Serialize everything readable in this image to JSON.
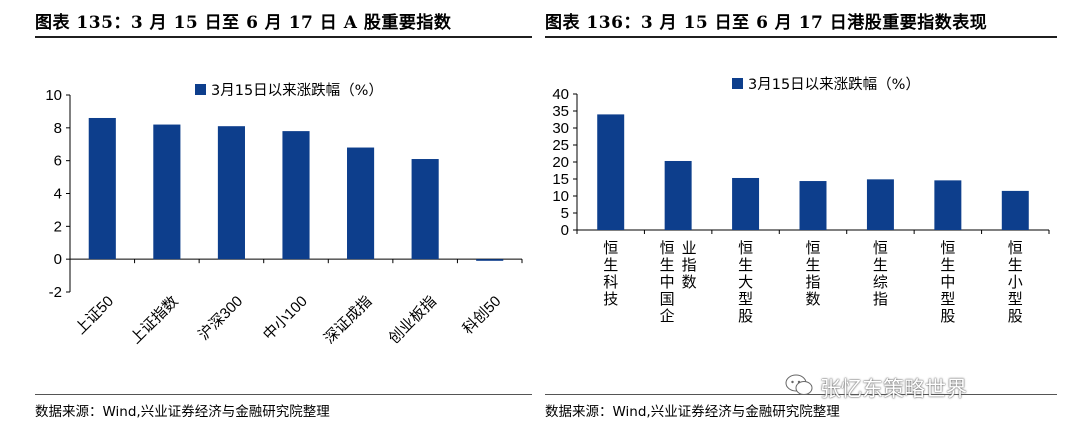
{
  "left_figure": {
    "title": "图表 135：3 月 15 日至 6 月 17 日 A 股重要指数",
    "source": "数据来源：Wind,兴业证券经济与金融研究院整理",
    "chart_data": {
      "type": "bar",
      "categories": [
        "上证50",
        "上证指数",
        "沪深300",
        "中小100",
        "深证成指",
        "创业板指",
        "科创50"
      ],
      "series": [
        {
          "name": "3月15日以来涨跌幅（%）",
          "values": [
            8.6,
            8.2,
            8.1,
            7.8,
            6.8,
            6.1,
            -0.1
          ]
        }
      ],
      "yticks": [
        "10",
        "8",
        "6",
        "4",
        "2",
        "0",
        "-2"
      ],
      "ylim": [
        -2,
        10
      ],
      "legend": "top",
      "grid": false,
      "color": "#0d3e8c"
    }
  },
  "right_figure": {
    "title": "图表 136：3 月 15 日至 6 月 17 日港股重要指数表现",
    "source": "数据来源：Wind,兴业证券经济与金融研究院整理",
    "chart_data": {
      "type": "bar",
      "categories": [
        "恒生科技",
        "恒生中国企业指数",
        "恒生大型股",
        "恒生指数",
        "恒生综指",
        "恒生中型股",
        "恒生小型股"
      ],
      "series": [
        {
          "name": "3月15日以来涨跌幅（%）",
          "values": [
            34,
            20.3,
            15.3,
            14.4,
            14.9,
            14.6,
            11.5
          ]
        }
      ],
      "yticks": [
        "40",
        "35",
        "30",
        "25",
        "20",
        "15",
        "10",
        "5",
        "0"
      ],
      "ylim": [
        0,
        40
      ],
      "legend": "top",
      "grid": false,
      "color": "#0d3e8c"
    }
  },
  "watermark": "张忆东策略世界"
}
